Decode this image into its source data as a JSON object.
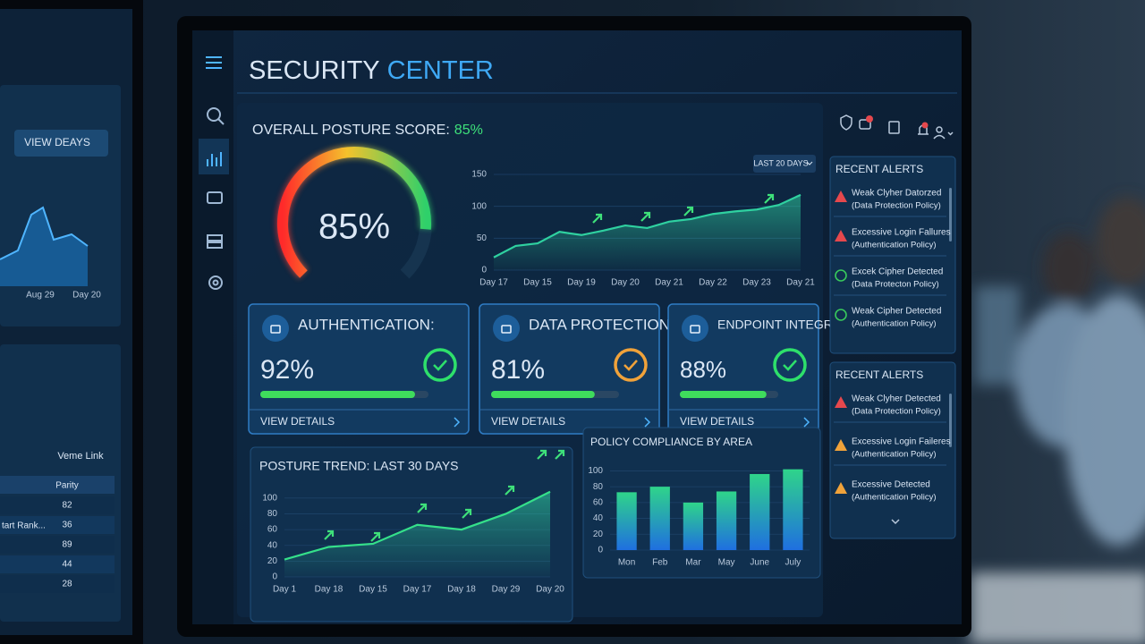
{
  "header": {
    "title_main": "SECURITY",
    "title_accent": "CENTER"
  },
  "posture": {
    "label": "OVERALL POSTURE SCORE:",
    "value": 85,
    "value_label": "85%",
    "range": [
      0,
      100
    ]
  },
  "trend_chart": {
    "type": "area",
    "dropdown": "LAST 20 DAYS",
    "categories": [
      "Day 17",
      null,
      "Day 15",
      null,
      "Day 19",
      null,
      "Day 20",
      null,
      "Day 21",
      null,
      "Day 22",
      null,
      "Day 23",
      null,
      "Day 21"
    ],
    "values": [
      20,
      38,
      42,
      60,
      55,
      62,
      70,
      66,
      76,
      80,
      88,
      92,
      95,
      102,
      118
    ],
    "color": "#2fd1a0",
    "ylim": [
      0,
      150
    ],
    "yticks": [
      0,
      50,
      100,
      150
    ]
  },
  "cards": [
    {
      "title": "AUTHENTICATION:",
      "value": 92,
      "value_label": "92%",
      "ring_color": "#2ee06b",
      "bar_color": "#3fdc5c",
      "link": "VIEW DETAILS"
    },
    {
      "title": "DATA PROTECTION:",
      "value": 81,
      "value_label": "81%",
      "ring_color": "#f0a23a",
      "bar_color": "#3fdc5c",
      "link": "VIEW DETAILS"
    },
    {
      "title": "ENDPOINT INTEGRITY:",
      "value": 88,
      "value_label": "88%",
      "ring_color": "#2ee06b",
      "bar_color": "#3fdc5c",
      "link": "VIEW DETAILS"
    }
  ],
  "posture_trend": {
    "type": "area",
    "title": "POSTURE TREND: LAST 30 DAYS",
    "categories": [
      "Day 1",
      "Day 18",
      "Day 15",
      "Day 17",
      "Day 18",
      "Day 29",
      "Day 20"
    ],
    "values": [
      22,
      38,
      42,
      66,
      60,
      80,
      108
    ],
    "color": "#35e08a",
    "ylim": [
      0,
      110
    ],
    "yticks": [
      0,
      20,
      40,
      60,
      80,
      100
    ]
  },
  "compliance": {
    "type": "bar",
    "title": "POLICY COMPLIANCE BY AREA",
    "categories": [
      "Mon",
      "Feb",
      "Mar",
      "May",
      "June",
      "July"
    ],
    "values": [
      73,
      80,
      60,
      74,
      96,
      102
    ],
    "ylim": [
      0,
      105
    ],
    "yticks": [
      0,
      20,
      40,
      60,
      80,
      100
    ]
  },
  "alerts": [
    {
      "title": "RECENT ALERTS",
      "items": [
        {
          "name": "Weak Clyher Datorzed",
          "policy": "(Data Protection Policy)",
          "icon": "triangle",
          "color": "#e5484d"
        },
        {
          "name": "Excessive Login Fallures",
          "policy": "(Authentication Policy)",
          "icon": "triangle",
          "color": "#e5484d"
        },
        {
          "name": "Excek Cipher Detected",
          "policy": "(Data Protecton Policy)",
          "icon": "circle",
          "color": "#38c95c"
        },
        {
          "name": "Weak Cipher Detected",
          "policy": "(Authentication Policy)",
          "icon": "circle",
          "color": "#38c95c"
        }
      ]
    },
    {
      "title": "RECENT ALERTS",
      "items": [
        {
          "name": "Weak Clyher Detected",
          "policy": "(Data Protection Policy)",
          "icon": "triangle",
          "color": "#e5484d"
        },
        {
          "name": "Excessive Login Faileres",
          "policy": "(Authentication Policy)",
          "icon": "triangle",
          "color": "#f0a23a"
        },
        {
          "name": "Excessive Detected",
          "policy": "(Authentication Policy)",
          "icon": "triangle",
          "color": "#f0a23a"
        }
      ]
    }
  ],
  "side_monitor": {
    "dropdown": "VIEW DEAYS",
    "axis_labels": [
      "Aug 29",
      "Day 20"
    ],
    "table_title": "Veme Link",
    "column": "Parity",
    "row_label": "tart Rank...",
    "rows": [
      "82",
      "36",
      "89",
      "44",
      "28"
    ]
  }
}
